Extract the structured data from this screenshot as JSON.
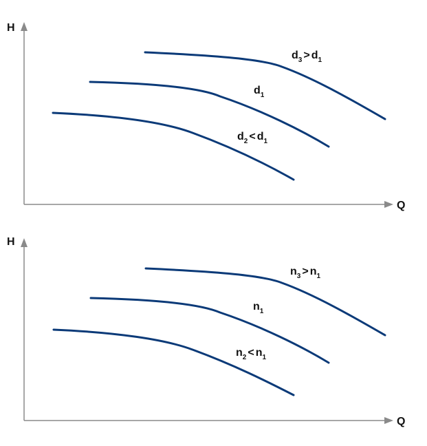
{
  "panels": [
    {
      "y_axis_label": "H",
      "x_axis_label": "Q",
      "curves": [
        {
          "label": [
            "d",
            "3",
            ">",
            "d",
            "1"
          ]
        },
        {
          "label": [
            "d",
            "1"
          ]
        },
        {
          "label": [
            "d",
            "2",
            "<",
            "d",
            "1"
          ]
        }
      ]
    },
    {
      "y_axis_label": "H",
      "x_axis_label": "Q",
      "curves": [
        {
          "label": [
            "n",
            "3",
            ">",
            "n",
            "1"
          ]
        },
        {
          "label": [
            "n",
            "1"
          ]
        },
        {
          "label": [
            "n",
            "2",
            "<",
            "n",
            "1"
          ]
        }
      ]
    }
  ]
}
